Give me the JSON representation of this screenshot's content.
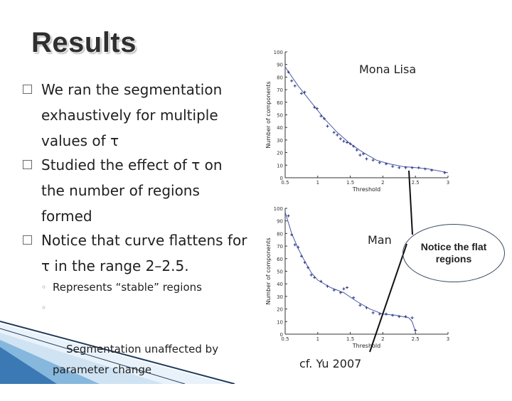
{
  "slide": {
    "title": "Results",
    "bullets": [
      {
        "text": "We ran the segmentation\nexhaustively for multiple\nvalues of τ"
      },
      {
        "text": "Studied the effect of τ on\nthe number of regions\nformed"
      },
      {
        "text": "Notice that curve flattens for\nτ in the range 2–2.5."
      }
    ],
    "sub_bullets": [
      {
        "text": "Represents “stable” regions"
      },
      {
        "text": "Segmentation unaffected by\nparameter change"
      }
    ],
    "callout": "Notice the flat regions",
    "citation": "cf. Yu 2007",
    "bullet_mark": "□",
    "sub_mark": "◦"
  },
  "chart_data": [
    {
      "type": "scatter",
      "label": "Mona Lisa",
      "xlabel": "Threshold",
      "ylabel": "Number of components",
      "xlim": [
        0.5,
        3
      ],
      "ylim": [
        0,
        100
      ],
      "x_ticks": [
        "0.5",
        "1",
        "1.5",
        "2",
        "2.5",
        "3"
      ],
      "y_ticks": [
        "0",
        "10",
        "20",
        "30",
        "40",
        "50",
        "60",
        "70",
        "80",
        "90",
        "100"
      ],
      "points": [
        {
          "x": 0.55,
          "y": 84
        },
        {
          "x": 0.6,
          "y": 77
        },
        {
          "x": 0.65,
          "y": 73
        },
        {
          "x": 0.75,
          "y": 67
        },
        {
          "x": 0.8,
          "y": 68
        },
        {
          "x": 0.95,
          "y": 56
        },
        {
          "x": 0.99,
          "y": 55
        },
        {
          "x": 1.05,
          "y": 49
        },
        {
          "x": 1.1,
          "y": 47
        },
        {
          "x": 1.15,
          "y": 41
        },
        {
          "x": 1.25,
          "y": 36
        },
        {
          "x": 1.3,
          "y": 34
        },
        {
          "x": 1.35,
          "y": 31
        },
        {
          "x": 1.4,
          "y": 29
        },
        {
          "x": 1.45,
          "y": 28
        },
        {
          "x": 1.5,
          "y": 27
        },
        {
          "x": 1.55,
          "y": 25
        },
        {
          "x": 1.6,
          "y": 22
        },
        {
          "x": 1.65,
          "y": 18
        },
        {
          "x": 1.7,
          "y": 19
        },
        {
          "x": 1.75,
          "y": 15
        },
        {
          "x": 1.85,
          "y": 14
        },
        {
          "x": 1.95,
          "y": 12
        },
        {
          "x": 2.05,
          "y": 11
        },
        {
          "x": 2.15,
          "y": 9
        },
        {
          "x": 2.25,
          "y": 8
        },
        {
          "x": 2.35,
          "y": 8
        },
        {
          "x": 2.45,
          "y": 8
        },
        {
          "x": 2.55,
          "y": 8
        },
        {
          "x": 2.65,
          "y": 7
        },
        {
          "x": 2.75,
          "y": 6
        },
        {
          "x": 2.95,
          "y": 4
        }
      ],
      "curve": [
        [
          0.5,
          88
        ],
        [
          0.7,
          73
        ],
        [
          0.9,
          60
        ],
        [
          1.1,
          47
        ],
        [
          1.3,
          36
        ],
        [
          1.5,
          27
        ],
        [
          1.7,
          20
        ],
        [
          1.9,
          14
        ],
        [
          2.1,
          11
        ],
        [
          2.3,
          9
        ],
        [
          2.5,
          8
        ],
        [
          2.7,
          7
        ],
        [
          3.0,
          4
        ]
      ],
      "grid": false
    },
    {
      "type": "scatter",
      "label": "Man",
      "xlabel": "Threshold",
      "ylabel": "Number of components",
      "xlim": [
        0.5,
        3
      ],
      "ylim": [
        0,
        100
      ],
      "x_ticks": [
        "0.5",
        "1",
        "1.5",
        "2",
        "2.5",
        "3"
      ],
      "y_ticks": [
        "0",
        "10",
        "20",
        "30",
        "40",
        "50",
        "60",
        "70",
        "80",
        "90",
        "100"
      ],
      "points": [
        {
          "x": 0.55,
          "y": 94
        },
        {
          "x": 0.6,
          "y": 79
        },
        {
          "x": 0.65,
          "y": 71
        },
        {
          "x": 0.7,
          "y": 69
        },
        {
          "x": 0.75,
          "y": 62
        },
        {
          "x": 0.8,
          "y": 57
        },
        {
          "x": 0.85,
          "y": 53
        },
        {
          "x": 0.9,
          "y": 47
        },
        {
          "x": 0.95,
          "y": 45
        },
        {
          "x": 1.05,
          "y": 42
        },
        {
          "x": 1.15,
          "y": 38
        },
        {
          "x": 1.25,
          "y": 35
        },
        {
          "x": 1.35,
          "y": 33
        },
        {
          "x": 1.4,
          "y": 36
        },
        {
          "x": 1.45,
          "y": 37
        },
        {
          "x": 1.55,
          "y": 29
        },
        {
          "x": 1.65,
          "y": 23
        },
        {
          "x": 1.75,
          "y": 21
        },
        {
          "x": 1.85,
          "y": 17
        },
        {
          "x": 1.95,
          "y": 16
        },
        {
          "x": 2.05,
          "y": 16
        },
        {
          "x": 2.15,
          "y": 15
        },
        {
          "x": 2.25,
          "y": 14
        },
        {
          "x": 2.35,
          "y": 14
        },
        {
          "x": 2.45,
          "y": 13
        },
        {
          "x": 2.5,
          "y": 3
        }
      ],
      "curve": [
        [
          0.5,
          97
        ],
        [
          0.6,
          80
        ],
        [
          0.7,
          68
        ],
        [
          0.8,
          58
        ],
        [
          0.9,
          49
        ],
        [
          1.0,
          43
        ],
        [
          1.2,
          37
        ],
        [
          1.4,
          33
        ],
        [
          1.6,
          26
        ],
        [
          1.8,
          20
        ],
        [
          2.0,
          16
        ],
        [
          2.2,
          15
        ],
        [
          2.4,
          13
        ],
        [
          2.45,
          10
        ],
        [
          2.5,
          2
        ]
      ],
      "grid": false
    }
  ]
}
